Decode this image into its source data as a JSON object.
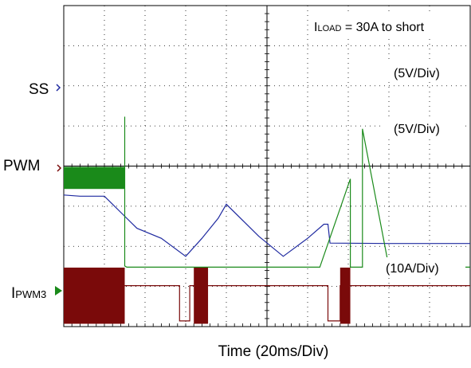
{
  "chart_data": {
    "type": "line",
    "title": "",
    "xlabel": "Time  (20ms/Div)",
    "annotation": {
      "main": "I",
      "sub": "LOAD",
      "rest": " = 30A to short"
    },
    "grid": true,
    "divisions": {
      "x": 10,
      "y": 8
    },
    "channels": [
      {
        "name": "SS",
        "scale": "(5V/Div)",
        "color": "#1f2aa0",
        "ground_div": 1.2,
        "x": [
          0.0,
          0.4,
          1.0,
          1.5,
          1.8,
          2.4,
          3.0,
          3.4,
          3.8,
          4.0,
          4.8,
          5.4,
          6.0,
          6.4,
          6.5,
          6.55,
          8.0,
          10.0
        ],
        "y": [
          2.08,
          2.05,
          2.05,
          1.55,
          1.25,
          1.0,
          0.55,
          1.0,
          1.5,
          1.85,
          1.05,
          0.55,
          1.0,
          1.35,
          1.35,
          0.88,
          0.87,
          0.87
        ]
      },
      {
        "name": "PWM",
        "scale": "(5V/Div)",
        "color": "#7a0a0a",
        "ground_div": 0.07,
        "x": [
          1.5,
          2.85,
          2.85,
          3.1,
          3.1,
          6.5,
          6.5,
          6.8,
          6.8,
          10.0
        ],
        "y": [
          0.95,
          0.95,
          0.07,
          0.07,
          0.95,
          0.95,
          0.07,
          0.07,
          0.95,
          0.95
        ],
        "bursts": [
          [
            0.0,
            1.5
          ],
          [
            3.2,
            3.55
          ],
          [
            6.8,
            7.05
          ]
        ]
      },
      {
        "name": "I",
        "name_sub": "PWM3",
        "scale": "(10A/Div)",
        "color": "#1a8a1a",
        "ground_div": 1.48,
        "x": [
          0.0,
          1.5,
          1.5,
          1.5,
          1.55,
          6.3,
          7.05,
          7.05,
          7.35,
          7.35,
          8.0,
          10.0
        ],
        "y": [
          2.25,
          2.25,
          3.75,
          0.03,
          0.0,
          0.0,
          2.2,
          0.0,
          0.0,
          3.45,
          0.0,
          0.0
        ]
      }
    ]
  }
}
